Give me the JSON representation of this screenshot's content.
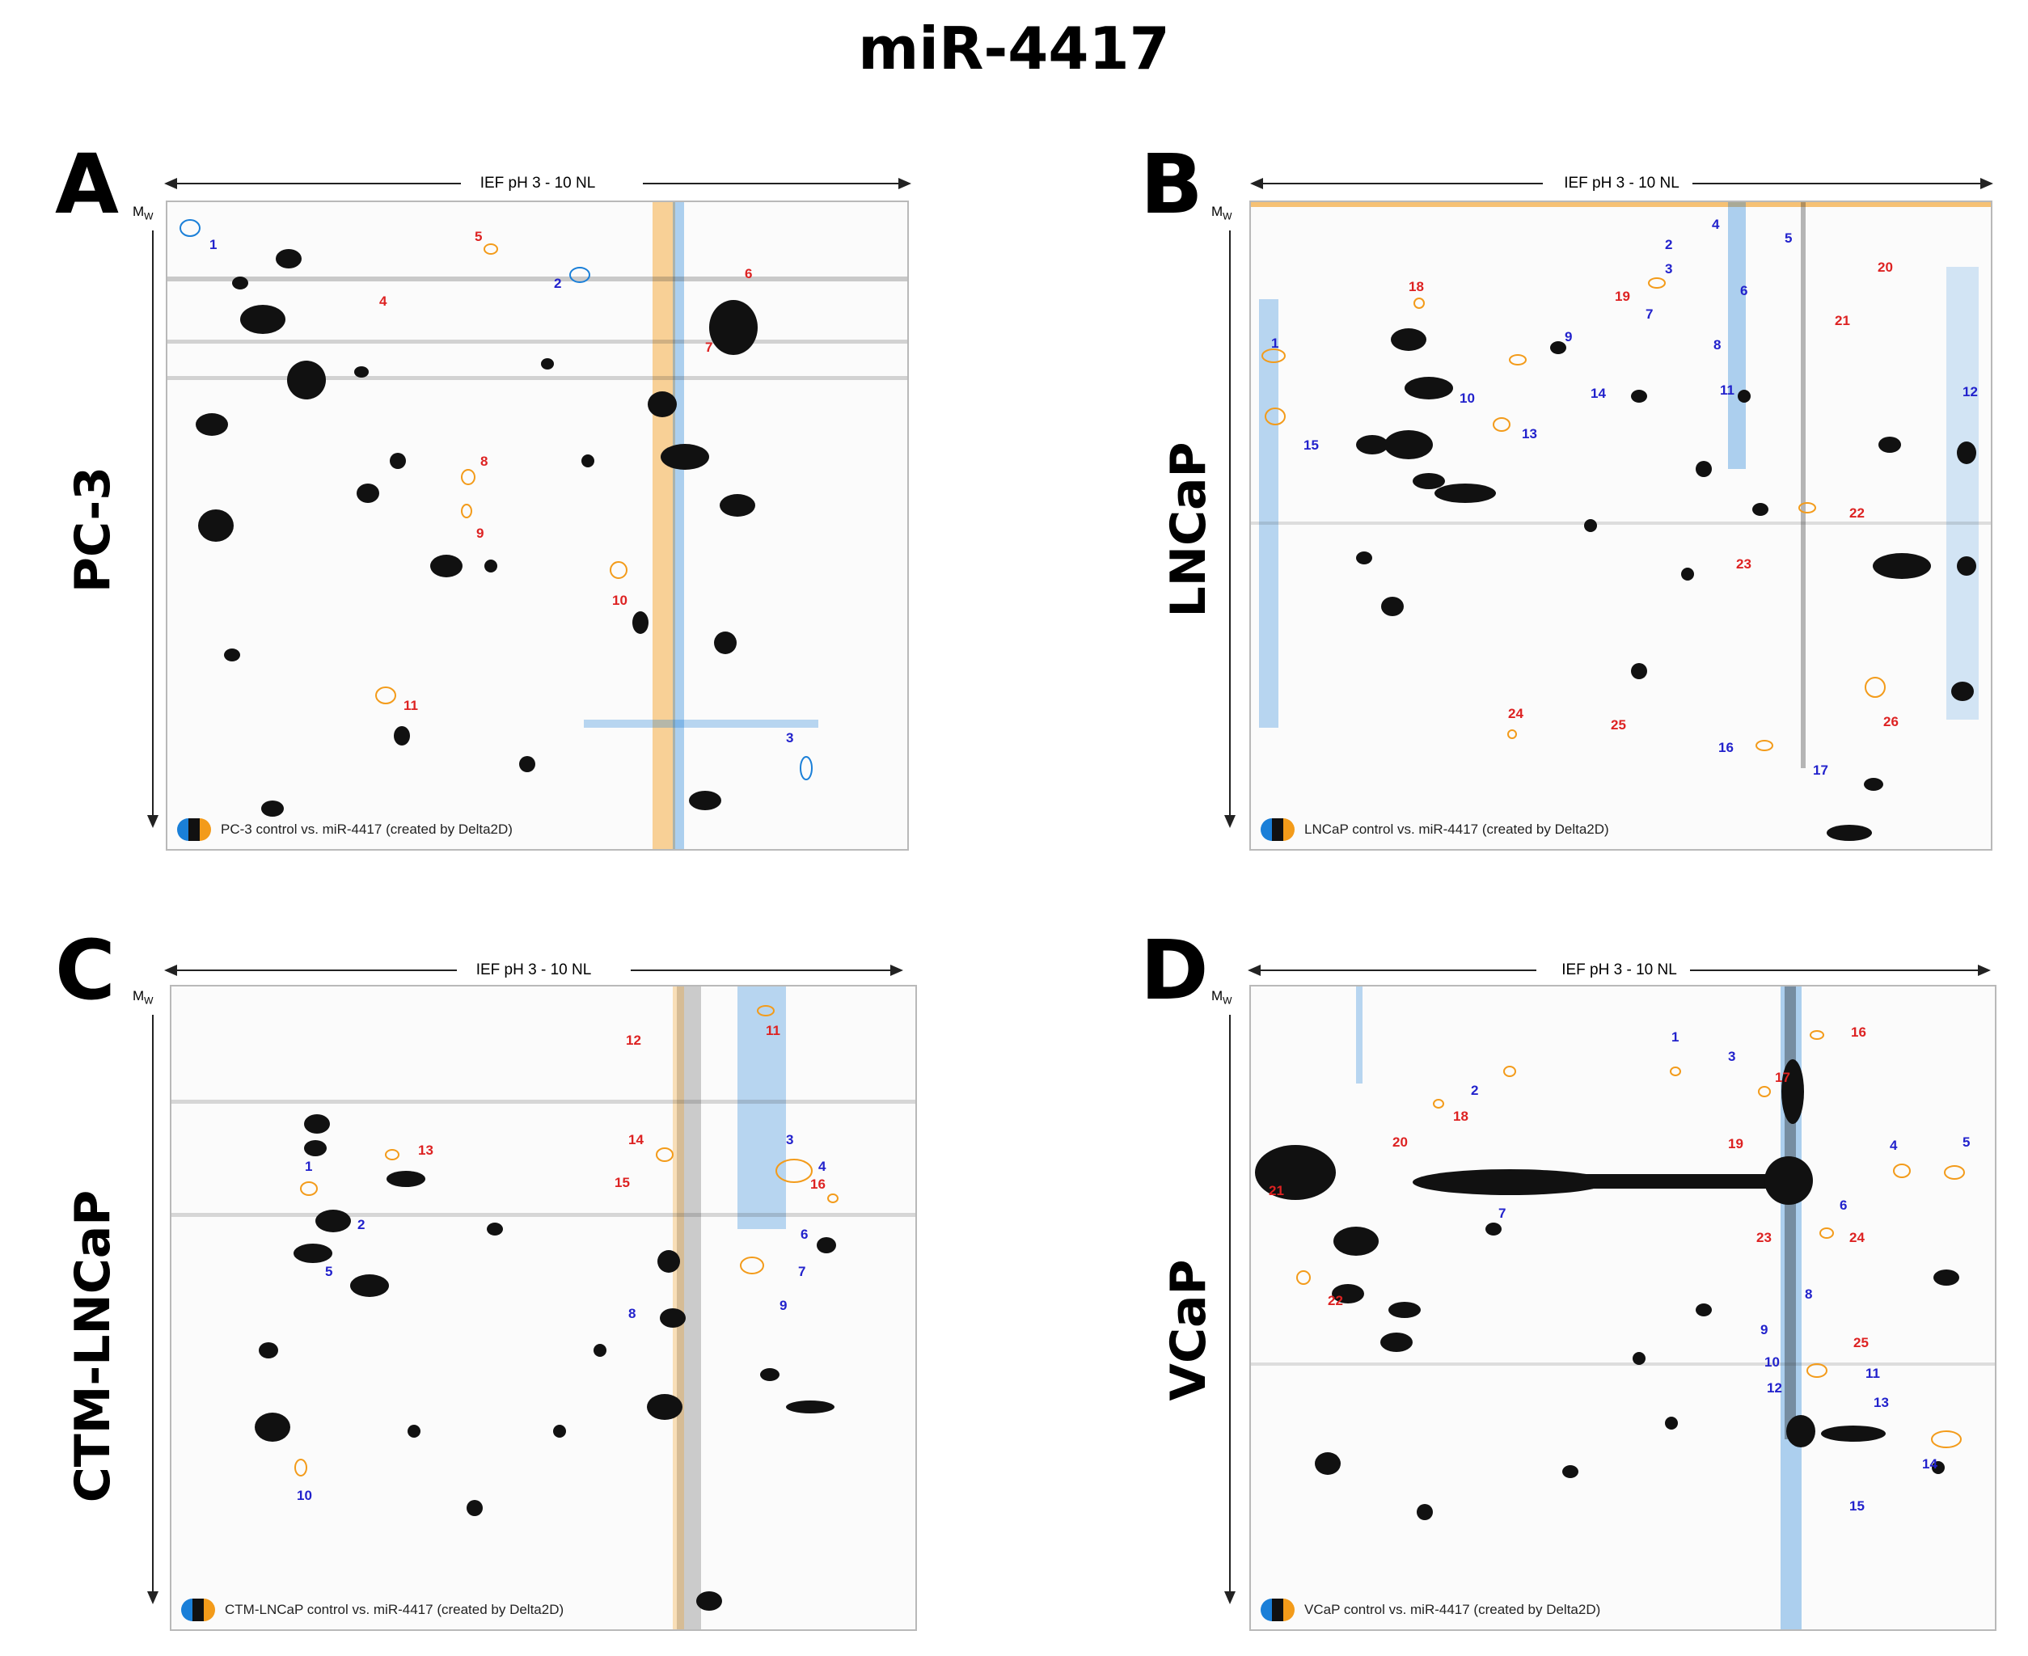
{
  "figure": {
    "title": "miR-4417",
    "axis_x_label": "IEF pH 3 - 10 NL",
    "axis_y_label": "M",
    "axis_y_sub": "W"
  },
  "colors": {
    "control": "#1a7fd8",
    "treated": "#f39b1a",
    "spots": "#111111",
    "label_blue": "#2222cc",
    "label_red": "#dd2222"
  },
  "panels": [
    {
      "letter": "A",
      "cell_line": "PC-3",
      "caption": "PC-3 control vs. miR-4417 (created by Delta2D)",
      "blue_labels": [
        "1",
        "2",
        "3"
      ],
      "red_labels": [
        "4",
        "5",
        "6",
        "7",
        "8",
        "9",
        "10",
        "11"
      ]
    },
    {
      "letter": "B",
      "cell_line": "LNCaP",
      "caption": "LNCaP control  vs. miR-4417 (created by Delta2D)",
      "blue_labels": [
        "1",
        "2",
        "3",
        "4",
        "5",
        "6",
        "7",
        "8",
        "9",
        "10",
        "11",
        "12",
        "13",
        "14",
        "15",
        "16",
        "17"
      ],
      "red_labels": [
        "18",
        "19",
        "20",
        "21",
        "22",
        "23",
        "24",
        "25",
        "26"
      ]
    },
    {
      "letter": "C",
      "cell_line": "CTM-LNCaP",
      "caption": "CTM-LNCaP control vs. miR-4417 (created by Delta2D)",
      "blue_labels": [
        "1",
        "2",
        "3",
        "4",
        "5",
        "6",
        "7",
        "8",
        "9",
        "10"
      ],
      "red_labels": [
        "11",
        "12",
        "13",
        "14",
        "15",
        "16"
      ]
    },
    {
      "letter": "D",
      "cell_line": "VCaP",
      "caption": "VCaP control vs. miR-4417 (created by Delta2D)",
      "blue_labels": [
        "1",
        "2",
        "3",
        "4",
        "5",
        "6",
        "7",
        "8",
        "9",
        "10",
        "11",
        "12",
        "13",
        "14",
        "15"
      ],
      "red_labels": [
        "16",
        "17",
        "18",
        "19",
        "20",
        "21",
        "22",
        "23",
        "24",
        "25"
      ]
    }
  ]
}
